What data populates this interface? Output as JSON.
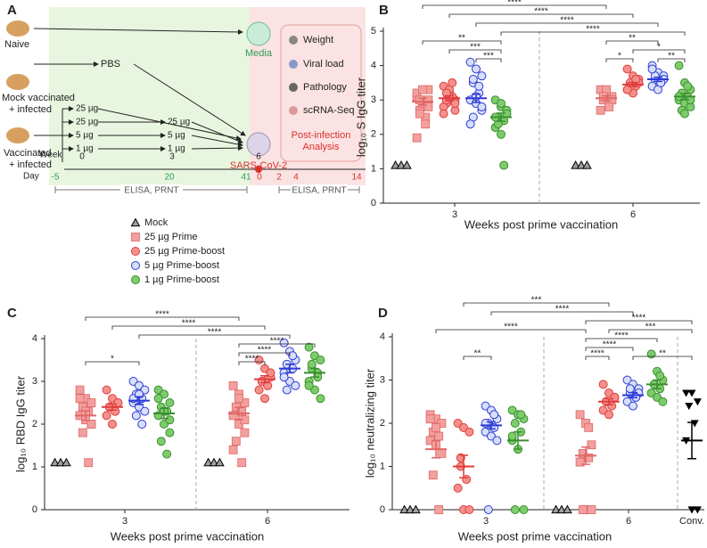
{
  "panel_a": {
    "label": "A",
    "naive": "Naive",
    "mock": [
      "Mock vaccinated",
      "+ infected"
    ],
    "vaccinated": [
      "Vaccinated",
      "+ infected"
    ],
    "pbs": "PBS",
    "media": "Media",
    "virus": "SARS-CoV-2",
    "prime_doses": [
      "25 µg",
      "25 µg",
      "5 µg",
      "1 µg"
    ],
    "boost_doses": [
      "25 µg",
      "5 µg",
      "1 µg"
    ],
    "analysis": [
      "Weight",
      "Viral load",
      "Pathology",
      "scRNA-Seq"
    ],
    "analysis_title": [
      "Post-infection",
      "Analysis"
    ],
    "week_label": "Week",
    "weeks": [
      "0",
      "3",
      "6"
    ],
    "day_label": "Day",
    "days": [
      "-5",
      "20",
      "41",
      "0",
      "2",
      "4",
      "14"
    ],
    "assays": [
      "ELISA, PRNT",
      "ELISA, PRNT"
    ]
  },
  "chart_data": [
    {
      "type": "dot",
      "label": "B",
      "ylabel": "log₁₀ S IgG titer",
      "xlabel": "Weeks post prime vaccination",
      "categories": [
        "3",
        "6"
      ],
      "ylim": [
        0,
        5
      ],
      "yticks": [
        0,
        1,
        2,
        3,
        4,
        5
      ],
      "series": [
        {
          "name": "Mock",
          "color": "#000000",
          "fill": "#9e9e9e",
          "values": [
            [
              1.1,
              1.1,
              1.1
            ],
            [
              1.1,
              1.1,
              1.1
            ]
          ]
        },
        {
          "name": "25 µg Prime",
          "color": "#e06666",
          "fill": "#f2a09e",
          "values": [
            [
              3.1,
              2.9,
              3.3,
              2.7,
              2.5,
              3.2,
              2.9,
              3.0,
              2.6,
              2.3,
              1.9,
              3.3,
              2.8,
              3.0
            ],
            [
              3.3,
              3.2,
              3.1,
              3.0,
              2.9,
              2.7,
              3.3,
              3.0,
              3.1,
              2.8
            ]
          ],
          "mean": [
            2.95,
            3.05
          ],
          "sem": [
            0.1,
            0.07
          ]
        },
        {
          "name": "25 µg Prime-boost",
          "color": "#e03c3c",
          "fill": "#f4908c",
          "values": [
            [
              3.4,
              3.2,
              3.0,
              2.9,
              3.1,
              2.8,
              3.3,
              2.7,
              3.0,
              3.5,
              2.6,
              3.1,
              2.9,
              3.2
            ],
            [
              3.9,
              3.7,
              3.6,
              3.5,
              3.4,
              3.3,
              3.2,
              3.5,
              3.4,
              3.6,
              3.3
            ]
          ],
          "mean": [
            3.05,
            3.45
          ],
          "sem": [
            0.07,
            0.06
          ]
        },
        {
          "name": "5 µg Prime-boost",
          "color": "#2b3ad6",
          "fill": "#d7def8",
          "values": [
            [
              4.1,
              3.9,
              3.7,
              3.5,
              3.2,
              3.0,
              2.9,
              2.7,
              2.5,
              3.4,
              2.3,
              3.1,
              2.8,
              3.6
            ],
            [
              4.0,
              3.8,
              3.7,
              3.6,
              3.5,
              3.4,
              3.3,
              3.6,
              3.7,
              3.5,
              3.9
            ]
          ],
          "mean": [
            3.05,
            3.6
          ],
          "sem": [
            0.12,
            0.06
          ]
        },
        {
          "name": "1 µg Prime-boost",
          "color": "#3b8f2f",
          "fill": "#7ccc6c",
          "values": [
            [
              3.0,
              2.8,
              2.6,
              2.5,
              2.4,
              2.2,
              2.0,
              2.7,
              2.3,
              1.1,
              2.5,
              2.9,
              2.6
            ],
            [
              4.0,
              3.5,
              3.3,
              3.2,
              3.1,
              3.0,
              2.9,
              2.8,
              2.7,
              3.4,
              3.1,
              2.6,
              3.0
            ]
          ],
          "mean": [
            2.5,
            3.1
          ],
          "sem": [
            0.12,
            0.09
          ]
        }
      ],
      "brackets": [
        {
          "groups": [
            [
              0,
              3
            ],
            [
              0,
              4
            ]
          ],
          "label": "***"
        },
        {
          "groups": [
            [
              0,
              2
            ],
            [
              0,
              4
            ]
          ],
          "label": "***"
        },
        {
          "groups": [
            [
              0,
              1
            ],
            [
              0,
              4
            ]
          ],
          "label": "**"
        },
        {
          "groups": [
            [
              1,
              1
            ],
            [
              1,
              2
            ]
          ],
          "label": "*"
        },
        {
          "groups": [
            [
              1,
              3
            ],
            [
              1,
              4
            ]
          ],
          "label": "**"
        },
        {
          "groups": [
            [
              1,
              2
            ],
            [
              1,
              4
            ]
          ],
          "label": "*"
        },
        {
          "groups": [
            [
              1,
              1
            ],
            [
              1,
              3
            ]
          ],
          "label": "**"
        },
        {
          "groups": [
            [
              0,
              4
            ],
            [
              1,
              4
            ]
          ],
          "label": "****"
        },
        {
          "groups": [
            [
              0,
              3
            ],
            [
              1,
              3
            ]
          ],
          "label": "****"
        },
        {
          "groups": [
            [
              0,
              2
            ],
            [
              1,
              2
            ]
          ],
          "label": "****"
        },
        {
          "groups": [
            [
              0,
              1
            ],
            [
              1,
              1
            ]
          ],
          "label": "****"
        }
      ]
    },
    {
      "type": "dot",
      "label": "C",
      "ylabel": "log₁₀ RBD IgG titer",
      "xlabel": "Weeks post prime vaccination",
      "categories": [
        "3",
        "6"
      ],
      "ylim": [
        0,
        4
      ],
      "yticks": [
        0,
        1,
        2,
        3,
        4
      ],
      "series": [
        {
          "values": [
            [
              1.1,
              1.1,
              1.1
            ],
            [
              1.1,
              1.1,
              1.1
            ]
          ]
        },
        {
          "values": [
            [
              2.8,
              2.6,
              2.5,
              2.4,
              2.3,
              2.2,
              2.1,
              2.0,
              1.8,
              1.1,
              2.6,
              2.3,
              2.0
            ],
            [
              2.9,
              2.7,
              2.5,
              2.4,
              2.3,
              2.2,
              2.0,
              1.8,
              1.6,
              1.1,
              1.4,
              2.6,
              2.1
            ]
          ],
          "mean": [
            2.2,
            2.25
          ],
          "sem": [
            0.11,
            0.14
          ]
        },
        {
          "values": [
            [
              2.8,
              2.6,
              2.5,
              2.4,
              2.3,
              2.2,
              2.0,
              2.5,
              2.4,
              2.3
            ],
            [
              3.5,
              3.3,
              3.1,
              3.0,
              2.9,
              2.8,
              2.6,
              3.2,
              3.0,
              2.9
            ]
          ],
          "mean": [
            2.4,
            3.05
          ],
          "sem": [
            0.07,
            0.08
          ]
        },
        {
          "values": [
            [
              3.0,
              2.9,
              2.8,
              2.7,
              2.6,
              2.5,
              2.4,
              2.3,
              2.2,
              2.0,
              2.6,
              2.7
            ],
            [
              3.9,
              3.7,
              3.5,
              3.4,
              3.3,
              3.2,
              3.0,
              2.9,
              2.8,
              3.6,
              3.1
            ]
          ],
          "mean": [
            2.55,
            3.3
          ],
          "sem": [
            0.09,
            0.1
          ]
        },
        {
          "values": [
            [
              2.8,
              2.7,
              2.5,
              2.4,
              2.3,
              2.2,
              2.0,
              1.8,
              1.6,
              1.3,
              2.6,
              2.3,
              2.1
            ],
            [
              3.8,
              3.6,
              3.5,
              3.3,
              3.2,
              3.0,
              2.8,
              2.6,
              3.4,
              3.1,
              2.9
            ]
          ],
          "mean": [
            2.25,
            3.2
          ],
          "sem": [
            0.12,
            0.1
          ]
        }
      ],
      "brackets": [
        {
          "groups": [
            [
              0,
              1
            ],
            [
              0,
              3
            ]
          ],
          "label": "*"
        },
        {
          "groups": [
            [
              1,
              1
            ],
            [
              1,
              2
            ]
          ],
          "label": "****"
        },
        {
          "groups": [
            [
              1,
              1
            ],
            [
              1,
              3
            ]
          ],
          "label": "****"
        },
        {
          "groups": [
            [
              1,
              1
            ],
            [
              1,
              4
            ]
          ],
          "label": "****"
        },
        {
          "groups": [
            [
              0,
              3
            ],
            [
              1,
              3
            ]
          ],
          "label": "****"
        },
        {
          "groups": [
            [
              0,
              2
            ],
            [
              1,
              2
            ]
          ],
          "label": "****"
        },
        {
          "groups": [
            [
              0,
              1
            ],
            [
              1,
              1
            ]
          ],
          "label": "****"
        }
      ]
    },
    {
      "type": "dot",
      "label": "D",
      "ylabel": "log₁₀ neutralizing titer",
      "xlabel": "Weeks post prime vaccination",
      "categories": [
        "3",
        "6",
        "Conv."
      ],
      "ylim": [
        0,
        4
      ],
      "yticks": [
        0,
        1,
        2,
        3,
        4
      ],
      "series": [
        {
          "values": [
            [
              0,
              0,
              0
            ],
            [
              0,
              0,
              0
            ]
          ]
        },
        {
          "values": [
            [
              2.2,
              2.1,
              2.0,
              1.8,
              1.7,
              1.6,
              1.5,
              1.3,
              0.8,
              0,
              2.1,
              1.9
            ],
            [
              2.2,
              2.0,
              1.5,
              1.3,
              1.2,
              1.1,
              0,
              0,
              0,
              1.9
            ]
          ],
          "mean": [
            1.4,
            1.25
          ],
          "sem": [
            0.2,
            0.2
          ]
        },
        {
          "values": [
            [
              2.0,
              1.9,
              1.8,
              1.0,
              0.7,
              0.5,
              0,
              0,
              1.2
            ],
            [
              2.9,
              2.7,
              2.6,
              2.5,
              2.4,
              2.3,
              2.2,
              2.6,
              2.5
            ]
          ],
          "mean": [
            1.0,
            2.5
          ],
          "sem": [
            0.26,
            0.07
          ]
        },
        {
          "values": [
            [
              2.4,
              2.3,
              2.1,
              2.0,
              1.9,
              1.8,
              1.7,
              1.6,
              0,
              2.2,
              2.0
            ],
            [
              3.0,
              2.9,
              2.8,
              2.7,
              2.6,
              2.5,
              2.4,
              2.7,
              2.8,
              2.6
            ]
          ],
          "mean": [
            1.95,
            2.65
          ],
          "sem": [
            0.08,
            0.06
          ]
        },
        {
          "values": [
            [
              2.3,
              2.2,
              2.1,
              2.0,
              1.8,
              1.6,
              1.4,
              0,
              0,
              2.2,
              1.7
            ],
            [
              3.6,
              3.2,
              3.0,
              2.9,
              2.8,
              2.7,
              2.6,
              2.5,
              2.9,
              3.1
            ]
          ],
          "mean": [
            1.6,
            2.9
          ],
          "sem": [
            0.2,
            0.1
          ]
        }
      ],
      "conv": {
        "color": "#000000",
        "values": [
          2.7,
          2.7,
          2.5,
          2.4,
          2.0,
          1.6,
          0,
          0
        ],
        "mean": 1.6,
        "sem": 0.42
      },
      "brackets": [
        {
          "groups": [
            [
              0,
              2
            ],
            [
              0,
              3
            ]
          ],
          "label": "**"
        },
        {
          "groups": [
            [
              1,
              1
            ],
            [
              1,
              2
            ]
          ],
          "label": "****"
        },
        {
          "groups": [
            [
              1,
              1
            ],
            [
              1,
              3
            ]
          ],
          "label": "****"
        },
        {
          "groups": [
            [
              1,
              1
            ],
            [
              1,
              4
            ]
          ],
          "label": "****"
        },
        {
          "groups": [
            [
              1,
              3
            ],
            [
              2,
              0
            ]
          ],
          "label": "**"
        },
        {
          "groups": [
            [
              1,
              2
            ],
            [
              2,
              0
            ]
          ],
          "label": "***"
        },
        {
          "groups": [
            [
              1,
              1
            ],
            [
              2,
              0
            ]
          ],
          "label": "****"
        },
        {
          "groups": [
            [
              0,
              3
            ],
            [
              1,
              3
            ]
          ],
          "label": "****"
        },
        {
          "groups": [
            [
              0,
              2
            ],
            [
              1,
              2
            ]
          ],
          "label": "***"
        },
        {
          "groups": [
            [
              0,
              1
            ],
            [
              1,
              1
            ]
          ],
          "label": "****"
        }
      ]
    }
  ]
}
